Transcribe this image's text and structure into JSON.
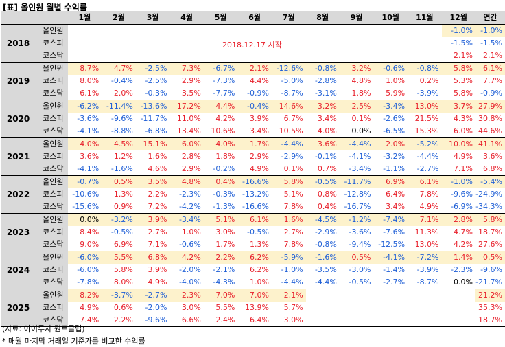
{
  "title": "[표] 올인원 월별 수익률",
  "headers": [
    "",
    "",
    "1월",
    "2월",
    "3월",
    "4월",
    "5월",
    "6월",
    "7월",
    "8월",
    "9월",
    "10월",
    "11월",
    "12월",
    "연간"
  ],
  "start_note": "2018.12.17 시작",
  "groups": [
    {
      "year": "2018",
      "rows": [
        {
          "label": "올인원",
          "values": [
            "",
            "",
            "",
            "",
            "",
            "",
            "",
            "",
            "",
            "",
            "",
            "-1.0%",
            "-1.0%"
          ]
        },
        {
          "label": "코스피",
          "values": [
            "",
            "",
            "",
            "",
            "",
            "",
            "",
            "",
            "",
            "",
            "",
            "-1.5%",
            "-1.5%"
          ]
        },
        {
          "label": "코스닥",
          "values": [
            "",
            "",
            "",
            "",
            "",
            "",
            "",
            "",
            "",
            "",
            "",
            "2.1%",
            "2.1%"
          ]
        }
      ]
    },
    {
      "year": "2019",
      "rows": [
        {
          "label": "올인원",
          "values": [
            "8.7%",
            "4.7%",
            "-2.5%",
            "7.3%",
            "-6.7%",
            "2.1%",
            "-12.6%",
            "-0.8%",
            "3.2%",
            "-0.6%",
            "-0.8%",
            "5.8%",
            "6.1%"
          ]
        },
        {
          "label": "코스피",
          "values": [
            "8.0%",
            "-0.4%",
            "-2.5%",
            "2.9%",
            "-7.3%",
            "4.4%",
            "-5.0%",
            "-2.8%",
            "4.8%",
            "1.0%",
            "0.2%",
            "5.3%",
            "7.7%"
          ]
        },
        {
          "label": "코스닥",
          "values": [
            "6.1%",
            "2.0%",
            "-0.3%",
            "3.5%",
            "-7.7%",
            "-0.9%",
            "-8.7%",
            "-3.1%",
            "1.8%",
            "5.9%",
            "-3.9%",
            "5.8%",
            "-0.9%"
          ]
        }
      ]
    },
    {
      "year": "2020",
      "rows": [
        {
          "label": "올인원",
          "values": [
            "-6.2%",
            "-11.4%",
            "-13.6%",
            "17.2%",
            "4.4%",
            "-0.4%",
            "14.6%",
            "3.2%",
            "2.5%",
            "-3.4%",
            "13.0%",
            "3.7%",
            "27.9%"
          ]
        },
        {
          "label": "코스피",
          "values": [
            "-3.6%",
            "-9.6%",
            "-11.7%",
            "11.0%",
            "4.2%",
            "3.9%",
            "6.7%",
            "3.4%",
            "0.1%",
            "-2.6%",
            "21.5%",
            "4.3%",
            "30.8%"
          ]
        },
        {
          "label": "코스닥",
          "values": [
            "-4.1%",
            "-8.8%",
            "-6.8%",
            "13.4%",
            "10.6%",
            "3.4%",
            "10.5%",
            "4.0%",
            "0.0%",
            "-6.5%",
            "15.3%",
            "6.0%",
            "44.6%"
          ]
        }
      ]
    },
    {
      "year": "2021",
      "rows": [
        {
          "label": "올인원",
          "values": [
            "4.0%",
            "4.5%",
            "15.1%",
            "6.0%",
            "4.0%",
            "1.7%",
            "-4.4%",
            "3.6%",
            "-4.4%",
            "2.0%",
            "-5.2%",
            "10.0%",
            "41.1%"
          ]
        },
        {
          "label": "코스피",
          "values": [
            "3.6%",
            "1.2%",
            "1.6%",
            "2.8%",
            "1.8%",
            "2.9%",
            "-2.9%",
            "-0.1%",
            "-4.1%",
            "-3.2%",
            "-4.4%",
            "4.9%",
            "3.6%"
          ]
        },
        {
          "label": "코스닥",
          "values": [
            "-4.1%",
            "-1.6%",
            "4.6%",
            "2.9%",
            "-0.2%",
            "4.9%",
            "0.1%",
            "0.7%",
            "-3.4%",
            "-1.1%",
            "-2.7%",
            "7.1%",
            "6.8%"
          ]
        }
      ]
    },
    {
      "year": "2022",
      "rows": [
        {
          "label": "올인원",
          "values": [
            "-0.7%",
            "0.5%",
            "3.5%",
            "4.8%",
            "0.4%",
            "-16.6%",
            "5.8%",
            "-0.5%",
            "-11.7%",
            "6.9%",
            "6.1%",
            "-1.0%",
            "-5.4%"
          ]
        },
        {
          "label": "코스피",
          "values": [
            "-10.6%",
            "1.3%",
            "2.2%",
            "-2.3%",
            "-0.3%",
            "-13.2%",
            "5.1%",
            "0.8%",
            "-12.8%",
            "6.4%",
            "7.8%",
            "-9.6%",
            "-24.9%"
          ]
        },
        {
          "label": "코스닥",
          "values": [
            "-15.6%",
            "0.9%",
            "7.2%",
            "-4.2%",
            "-1.3%",
            "-16.6%",
            "7.8%",
            "0.4%",
            "-16.7%",
            "3.4%",
            "4.9%",
            "-6.9%",
            "-34.3%"
          ]
        }
      ]
    },
    {
      "year": "2023",
      "rows": [
        {
          "label": "올인원",
          "values": [
            "0.0%",
            "-3.2%",
            "3.9%",
            "-3.4%",
            "5.1%",
            "6.1%",
            "1.6%",
            "-4.5%",
            "-1.2%",
            "-7.4%",
            "7.1%",
            "2.8%",
            "5.8%"
          ]
        },
        {
          "label": "코스피",
          "values": [
            "8.4%",
            "-0.5%",
            "2.7%",
            "1.0%",
            "3.0%",
            "-0.5%",
            "2.7%",
            "-2.9%",
            "-3.6%",
            "-7.6%",
            "11.3%",
            "4.7%",
            "18.7%"
          ]
        },
        {
          "label": "코스닥",
          "values": [
            "9.0%",
            "6.9%",
            "7.1%",
            "-0.6%",
            "1.7%",
            "1.3%",
            "7.8%",
            "-0.8%",
            "-9.4%",
            "-12.5%",
            "13.0%",
            "4.2%",
            "27.6%"
          ]
        }
      ]
    },
    {
      "year": "2024",
      "rows": [
        {
          "label": "올인원",
          "values": [
            "-6.0%",
            "5.5%",
            "6.8%",
            "4.2%",
            "2.2%",
            "6.2%",
            "-5.9%",
            "-1.6%",
            "0.5%",
            "-4.1%",
            "-7.2%",
            "1.4%",
            "0.5%"
          ]
        },
        {
          "label": "코스피",
          "values": [
            "-6.0%",
            "5.8%",
            "3.9%",
            "-2.0%",
            "-2.1%",
            "6.2%",
            "-1.0%",
            "-3.5%",
            "-3.0%",
            "-1.4%",
            "-3.9%",
            "-2.3%",
            "-9.6%"
          ]
        },
        {
          "label": "코스닥",
          "values": [
            "-7.8%",
            "8.0%",
            "4.9%",
            "-4.0%",
            "-4.3%",
            "1.0%",
            "-4.4%",
            "-4.4%",
            "-0.5%",
            "-2.7%",
            "-8.7%",
            "0.0%",
            "-21.7%"
          ]
        }
      ]
    },
    {
      "year": "2025",
      "rows": [
        {
          "label": "올인원",
          "values": [
            "8.2%",
            "-3.7%",
            "-2.7%",
            "2.3%",
            "7.0%",
            "7.0%",
            "2.1%",
            "",
            "",
            "",
            "",
            "",
            "21.2%"
          ]
        },
        {
          "label": "코스피",
          "values": [
            "4.9%",
            "0.6%",
            "-2.0%",
            "3.0%",
            "5.5%",
            "13.9%",
            "5.7%",
            "",
            "",
            "",
            "",
            "",
            "35.3%"
          ]
        },
        {
          "label": "코스닥",
          "values": [
            "7.4%",
            "2.2%",
            "-9.6%",
            "6.6%",
            "2.4%",
            "6.4%",
            "3.0%",
            "",
            "",
            "",
            "",
            "",
            "18.7%"
          ]
        }
      ]
    }
  ],
  "footnotes": [
    "(자료: 아이투자 퀀트클럽)",
    "* 매월 마지막 거래일 기준가를 비교한 수익률"
  ]
}
